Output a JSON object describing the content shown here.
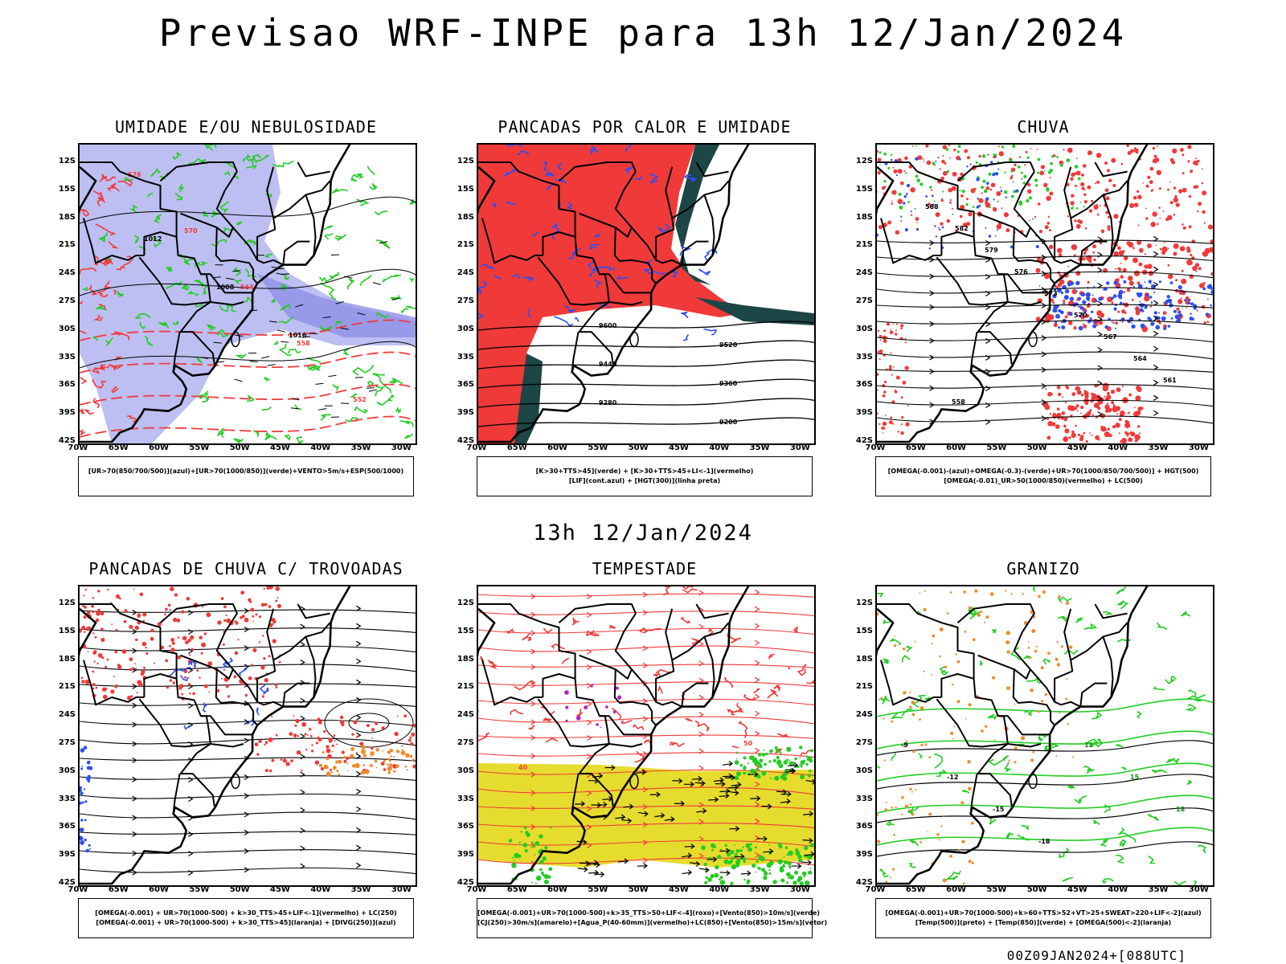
{
  "header": {
    "title": "Previsao WRF-INPE  para 13h 12/Jan/2024",
    "mid_title": "13h 12/Jan/2024",
    "footer": "00Z09JAN2024+[088UTC]"
  },
  "axes": {
    "lat_labels": [
      "12S",
      "15S",
      "18S",
      "21S",
      "24S",
      "27S",
      "30S",
      "33S",
      "36S",
      "39S",
      "42S"
    ],
    "lon_labels": [
      "70W",
      "65W",
      "60W",
      "55W",
      "50W",
      "45W",
      "40W",
      "35W",
      "30W"
    ]
  },
  "panels": [
    {
      "title": "UMIDADE E/OU NEBULOSIDADE",
      "legend": [
        "[UR>70(850/700/500)](azul)+[UR>70(1000/850)](verde)+VENTO>5m/s+ESP(500/1000)"
      ],
      "contour_labels": [
        "1012",
        "1008",
        "1016",
        "576",
        "570",
        "564",
        "558",
        "552"
      ]
    },
    {
      "title": "PANCADAS POR CALOR E UMIDADE",
      "legend": [
        "[K>30+TTS>45](verde) + [K>30+TTS>45+LI<-1](vermelho)",
        "[LIF](cont.azul) + [HGT(300)](linha preta)"
      ],
      "contour_labels": [
        "9600",
        "9520",
        "9440",
        "9360",
        "9280",
        "9200"
      ]
    },
    {
      "title": "CHUVA",
      "legend": [
        "[OMEGA(-0.001)-(azul)+OMEGA(-0.3)-(verde)+UR>70(1000/850/700/500)] + HGT(500)",
        "[OMEGA(-0.01)_UR>50(1000/850)(vermelho) + LC(500)"
      ],
      "contour_labels": [
        "588",
        "582",
        "579",
        "576",
        "573",
        "570",
        "567",
        "564",
        "561",
        "558"
      ]
    },
    {
      "title": "PANCADAS DE CHUVA C/ TROVOADAS",
      "legend": [
        "[OMEGA(-0.001) + UR>70(1000-500) + k>30_TTS>45+LIF<-1](vermelho) + LC(250)",
        "[OMEGA(-0.001) + UR>70(1000-500) + k>30_TTS>45](laranja) + [DIVG(250)](azul)"
      ],
      "contour_labels": []
    },
    {
      "title": "TEMPESTADE",
      "legend": [
        "[OMEGA(-0.001)+UR>70(1000-500)+k>35_TTS>50+LIF<-4](roxo)+[Vento(850)>10m/s](verde)",
        "[CJ(250)>30m/s](amarelo)+[Agua_P(40-60mm)](vermelho)+LC(850)+[Vento(850)>15m/s](vetor)"
      ],
      "contour_labels": [
        "40",
        "50"
      ]
    },
    {
      "title": "GRANIZO",
      "legend": [
        "[OMEGA(-0.001)+UR>70(1000-500)+k>60+TTS>52+VT>25+SWEAT>220+LIF<-2](azul)",
        "[Temp(500)](preto) + [Temp(850)](verde) + [OMEGA(500)<-2](laranja)"
      ],
      "contour_labels": [
        "-9",
        "-12",
        "-15",
        "-18",
        "12",
        "15",
        "18"
      ]
    }
  ],
  "colors": {
    "red": "#f03a3a",
    "green": "#22cc22",
    "blue": "#2d4ff0",
    "lavender": "#b2b4f0",
    "yellow": "#e6dc2e",
    "orange": "#f08a28",
    "darkteal": "#1d4646",
    "purple": "#b020c0"
  }
}
